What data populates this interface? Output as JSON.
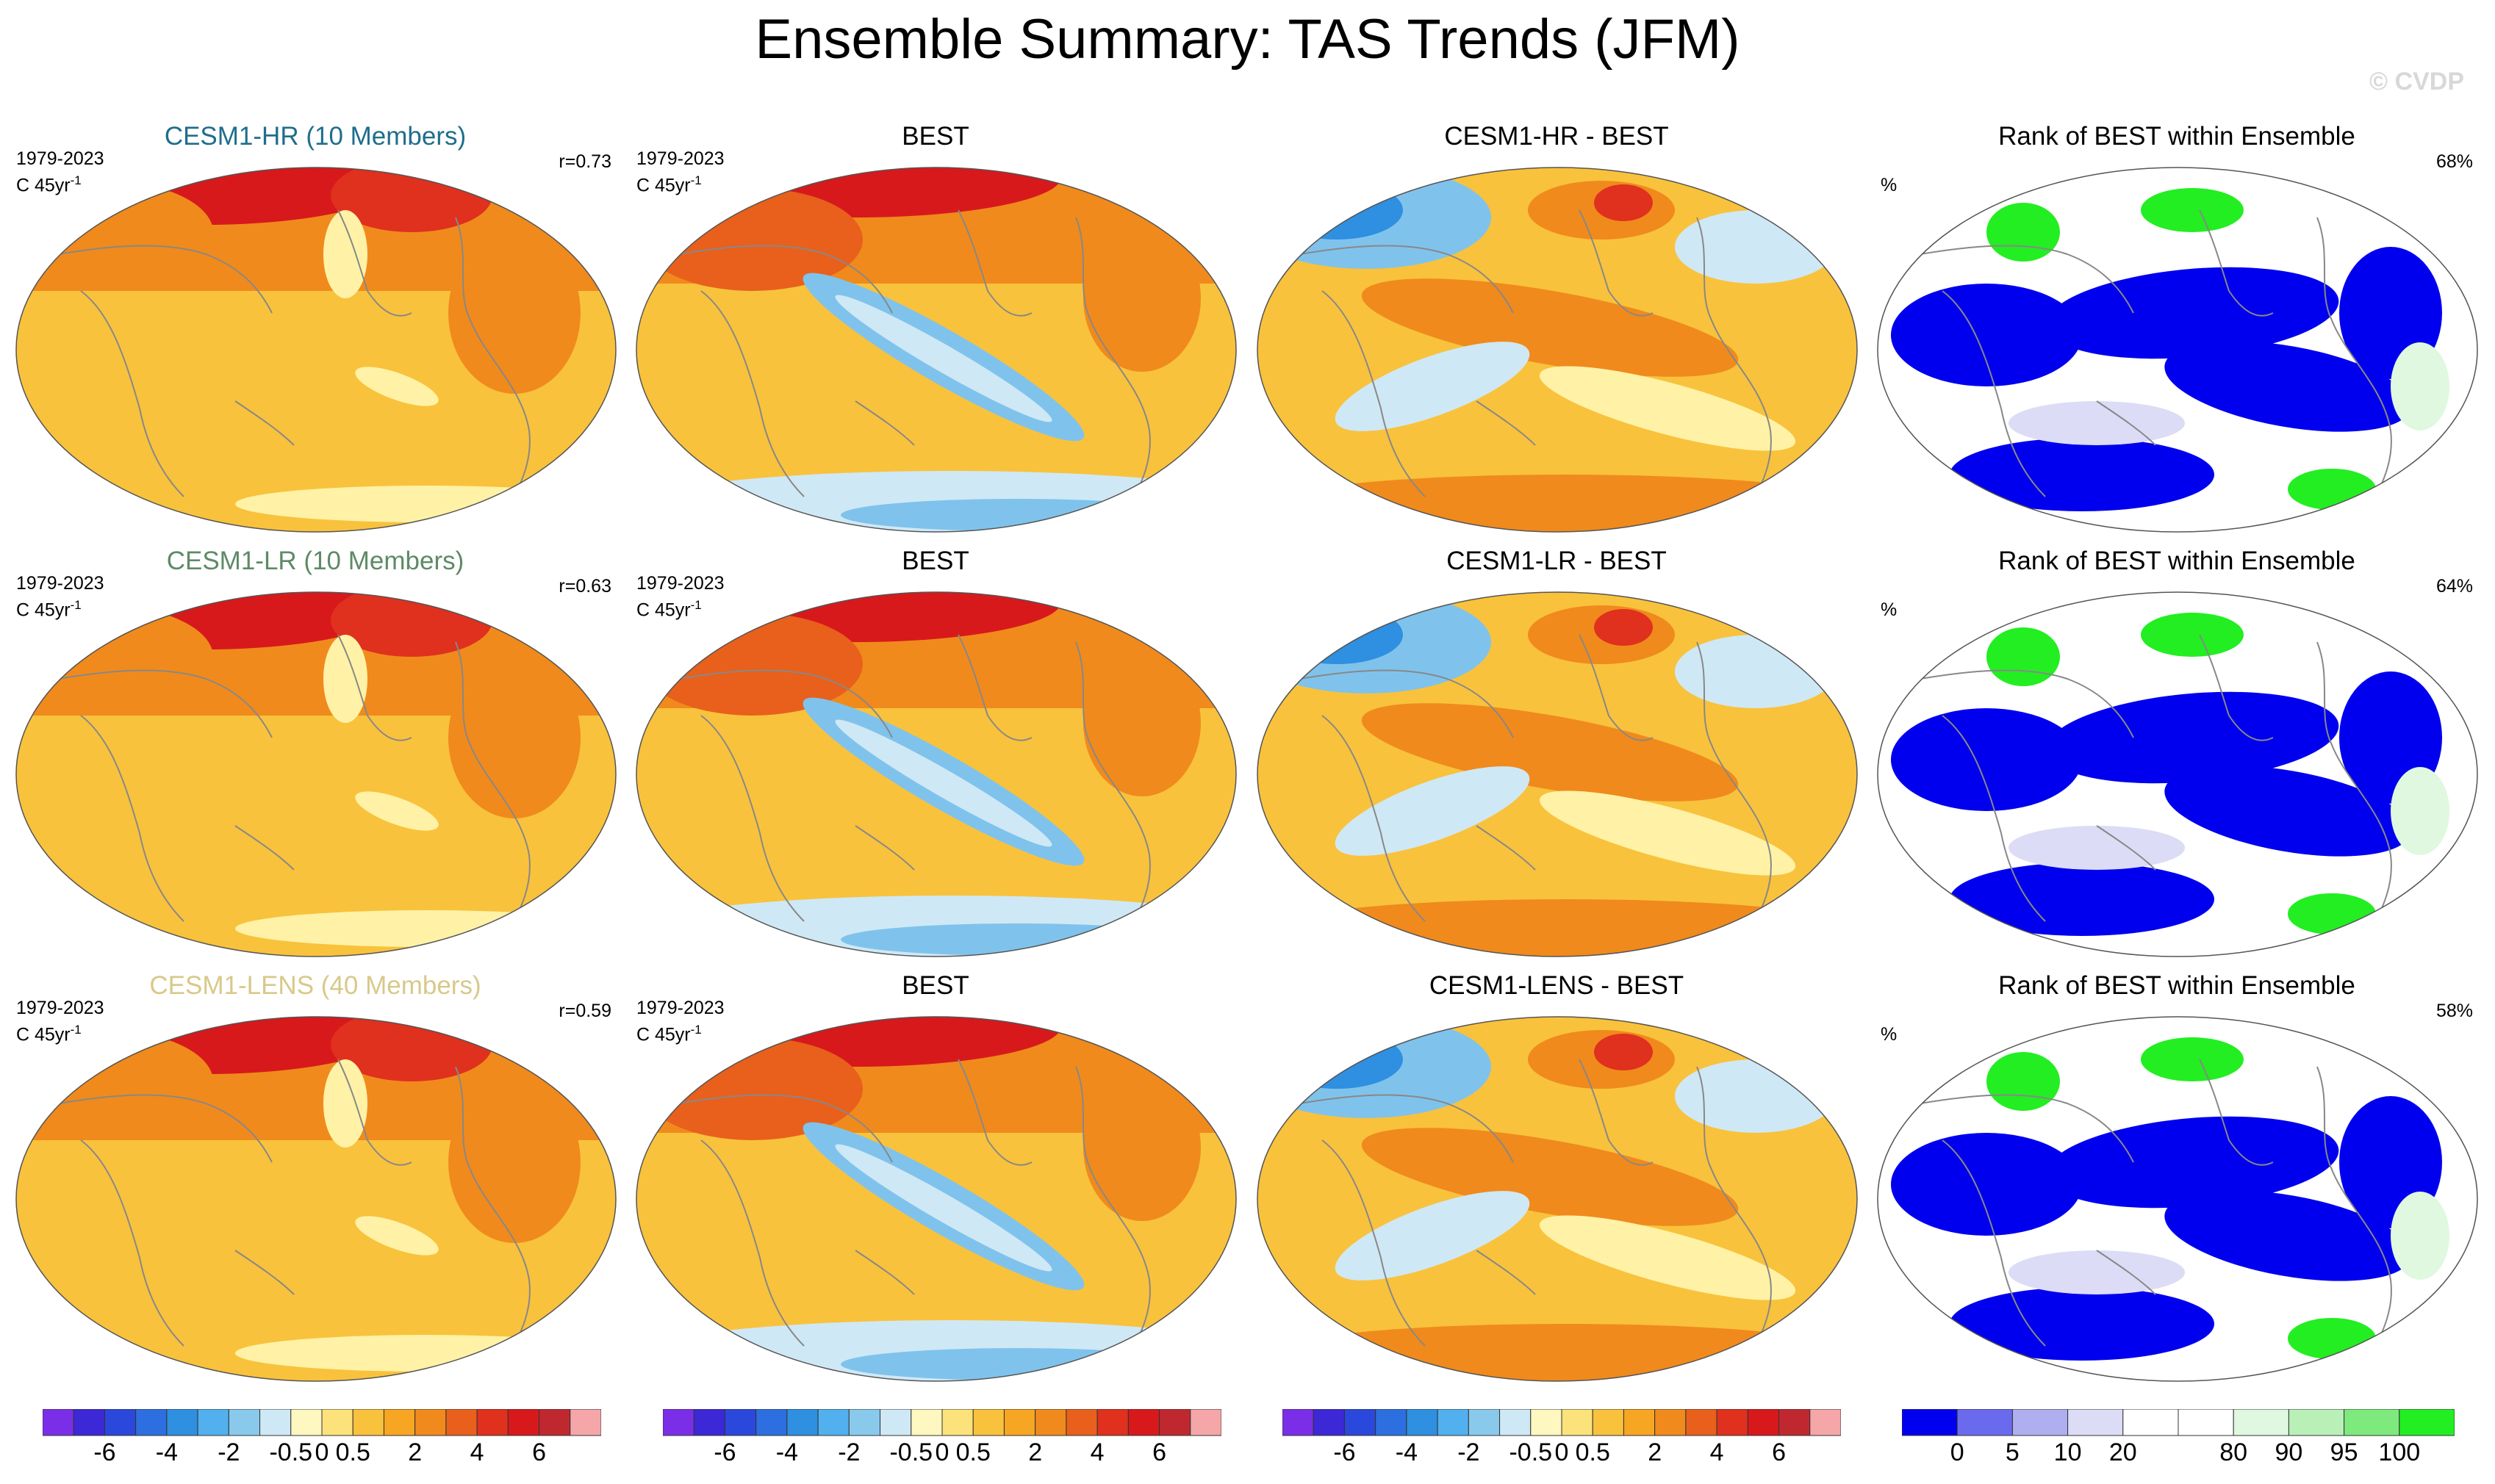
{
  "title": "Ensemble Summary: TAS Trends (JFM)",
  "watermark": "© CVDP",
  "colors": {
    "hr": "#1f6e8c",
    "lr": "#5e8a66",
    "lens": "#d8c98a",
    "warm_strong": "#d7191c",
    "warm": "#f08a1c",
    "warm_light": "#f9c23c",
    "neutral": "#fff2a6",
    "cool_light": "#cfe8f5",
    "cool": "#7fc3ec",
    "cool_strong": "#2f8fe0",
    "rank_low": "#0000ee",
    "rank_high": "#22ee22",
    "coast": "#888888"
  },
  "rows": [
    {
      "ensemble": {
        "title": "CESM1-HR (10 Members)",
        "period": "1979-2023",
        "units": "C 45yr",
        "units_exp": "-1",
        "r": "r=0.73"
      },
      "obs": {
        "title": "BEST",
        "period": "1979-2023",
        "units": "C 45yr",
        "units_exp": "-1"
      },
      "diff": {
        "title": "CESM1-HR - BEST"
      },
      "rank": {
        "title": "Rank of BEST within Ensemble",
        "pct_label": "%",
        "pct_value": "68%"
      }
    },
    {
      "ensemble": {
        "title": "CESM1-LR (10 Members)",
        "period": "1979-2023",
        "units": "C 45yr",
        "units_exp": "-1",
        "r": "r=0.63"
      },
      "obs": {
        "title": "BEST",
        "period": "1979-2023",
        "units": "C 45yr",
        "units_exp": "-1"
      },
      "diff": {
        "title": "CESM1-LR - BEST"
      },
      "rank": {
        "title": "Rank of BEST within Ensemble",
        "pct_label": "%",
        "pct_value": "64%"
      }
    },
    {
      "ensemble": {
        "title": "CESM1-LENS (40 Members)",
        "period": "1979-2023",
        "units": "C 45yr",
        "units_exp": "-1",
        "r": "r=0.59"
      },
      "obs": {
        "title": "BEST",
        "period": "1979-2023",
        "units": "C 45yr",
        "units_exp": "-1"
      },
      "diff": {
        "title": "CESM1-LENS - BEST"
      },
      "rank": {
        "title": "Rank of BEST within Ensemble",
        "pct_label": "%",
        "pct_value": "58%"
      }
    }
  ],
  "trend_colorbar": {
    "colors": [
      "#7b2ee8",
      "#3c28d6",
      "#2a48dc",
      "#2d6fe0",
      "#2f8fe0",
      "#52b0ee",
      "#89c9ec",
      "#cfe8f5",
      "#fff7c0",
      "#fbe27a",
      "#f9c23c",
      "#f6a623",
      "#f08a1c",
      "#e8601c",
      "#e0301e",
      "#d7191c",
      "#c02830",
      "#f4a6a8"
    ],
    "ticks": [
      "-6",
      "-4",
      "-2",
      "-0.5",
      "0",
      "0.5",
      "2",
      "4",
      "6"
    ]
  },
  "rank_colorbar": {
    "colors": [
      "#0000ee",
      "#6a6aee",
      "#aeaef0",
      "#dcdcf6",
      "#ffffff",
      "#ffffff",
      "#dff8df",
      "#b8f0b8",
      "#7eea7e",
      "#22ee22"
    ],
    "ticks": [
      "0",
      "5",
      "10",
      "20",
      "80",
      "90",
      "95",
      "100"
    ]
  }
}
